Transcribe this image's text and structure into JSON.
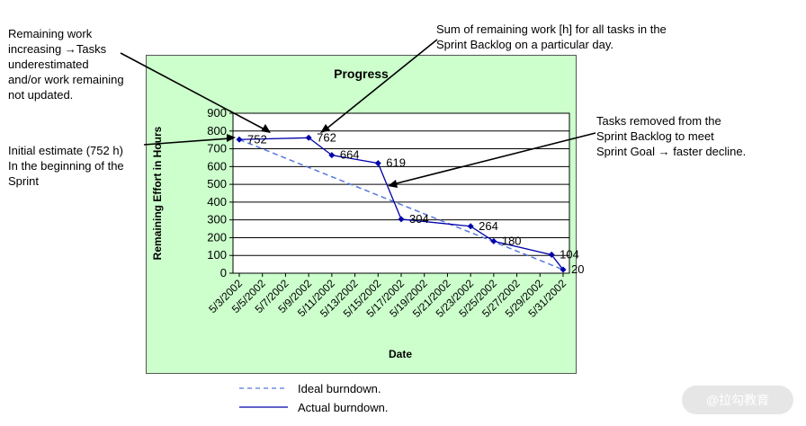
{
  "annotations": {
    "remaining_increasing": "Remaining work\nincreasing →Tasks\nunderestimated\nand/or work remaining\nnot updated.",
    "sum_remaining": "Sum of remaining work [h] for all tasks in the\nSprint Backlog on a particular day.",
    "initial_estimate": "Initial estimate (752 h)\nIn the beginning of the\nSprint",
    "tasks_removed": "Tasks removed from the\nSprint Backlog to meet\nSprint Goal → faster decline."
  },
  "legend": {
    "ideal": "Ideal burndown.",
    "actual": "Actual burndown."
  },
  "watermark": "@拉勾教育",
  "colors": {
    "plot_background": "#ccffcc",
    "series_color": "#0000aa",
    "ideal_color": "#5577dd"
  },
  "chart_data": {
    "type": "line",
    "title": "Progress",
    "xlabel": "Date",
    "ylabel": "Remaining Effort in Hours",
    "ylim": [
      0,
      900
    ],
    "yticks": [
      0,
      100,
      200,
      300,
      400,
      500,
      600,
      700,
      800,
      900
    ],
    "grid": "horizontal",
    "x_tick_labels": [
      "5/3/2002",
      "5/5/2002",
      "5/7/2002",
      "5/9/2002",
      "5/11/2002",
      "5/13/2002",
      "5/15/2002",
      "5/17/2002",
      "5/19/2002",
      "5/21/2002",
      "5/23/2002",
      "5/25/2002",
      "5/27/2002",
      "5/29/2002",
      "5/31/2002"
    ],
    "series": [
      {
        "name": "Actual burndown.",
        "style": "solid",
        "x": [
          "5/3/2002",
          "5/9/2002",
          "5/11/2002",
          "5/15/2002",
          "5/17/2002",
          "5/23/2002",
          "5/25/2002",
          "5/30/2002",
          "5/31/2002"
        ],
        "y": [
          752,
          762,
          664,
          619,
          304,
          264,
          180,
          104,
          20
        ],
        "labels": [
          "752",
          "762",
          "664",
          "619",
          "304",
          "264",
          "180",
          "104",
          "20"
        ]
      },
      {
        "name": "Ideal burndown.",
        "style": "dashed",
        "x": [
          "5/3/2002",
          "5/31/2002"
        ],
        "y": [
          752,
          20
        ]
      }
    ]
  }
}
